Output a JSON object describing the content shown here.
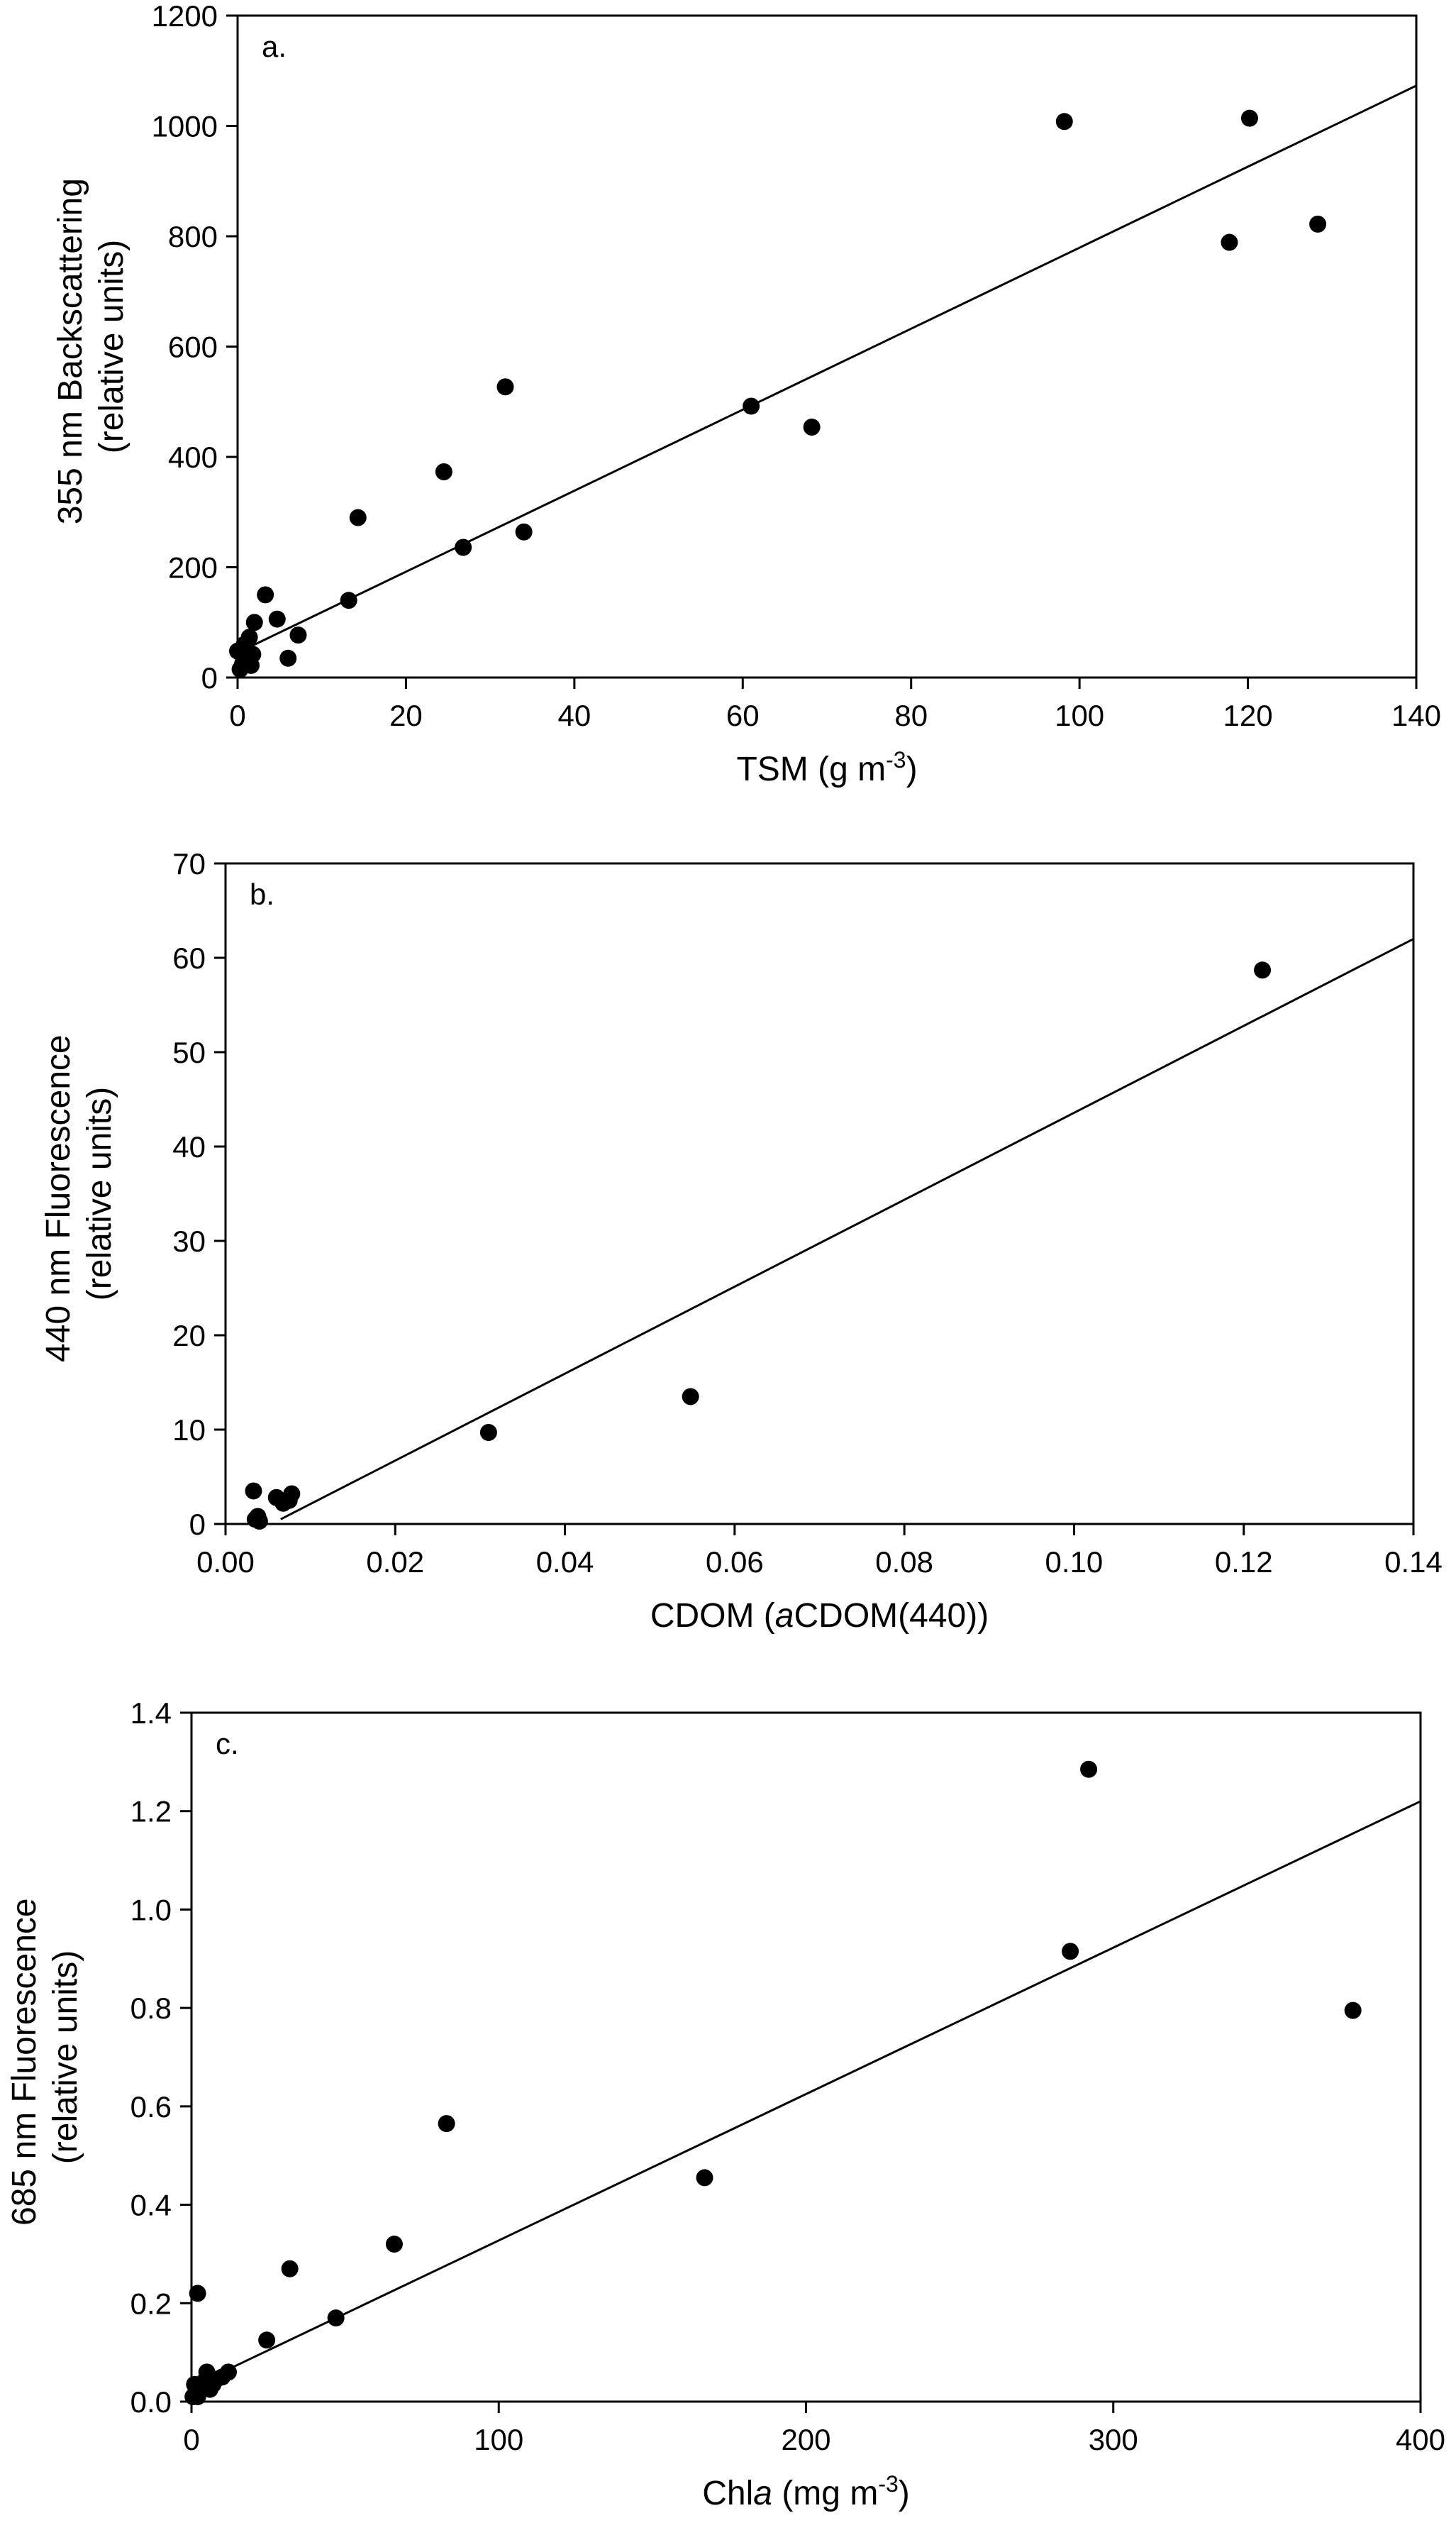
{
  "chart_data": [
    {
      "type": "scatter",
      "panel_label": "a.",
      "ylabel_line1": "355 nm Backscattering",
      "ylabel_line2": "(relative units)",
      "xlabel_main": "TSM (g m",
      "xlabel_sup": "-3",
      "xlabel_end": ")",
      "xlim": [
        0,
        140
      ],
      "ylim": [
        0,
        1200
      ],
      "xticks": [
        0,
        20,
        40,
        60,
        80,
        100,
        120,
        140
      ],
      "yticks": [
        0,
        200,
        400,
        600,
        800,
        1000,
        1200
      ],
      "x": [
        0,
        0.3,
        0.5,
        0.6,
        0.8,
        1,
        1.2,
        1.4,
        1.6,
        1.8,
        2,
        3.3,
        4.7,
        6,
        7.2,
        13.2,
        14.3,
        24.5,
        26.8,
        31.8,
        34,
        61,
        68.2,
        98.2,
        117.8,
        120.2,
        128.3
      ],
      "y": [
        48,
        15,
        42,
        25,
        60,
        35,
        30,
        73,
        22,
        42,
        100,
        150,
        106,
        35,
        77,
        140,
        290,
        373,
        236,
        527,
        264,
        492,
        454,
        1008,
        789,
        1014,
        822
      ],
      "fit": {
        "x": [
          0,
          140
        ],
        "y": [
          45,
          1073
        ]
      }
    },
    {
      "type": "scatter",
      "panel_label": "b.",
      "ylabel_line1": "440 nm Fluorescence",
      "ylabel_line2": "(relative units)",
      "xlabel_pre": "CDOM (",
      "xlabel_italic": "a",
      "xlabel_post": "CDOM(440))",
      "xlim": [
        0,
        0.14
      ],
      "ylim": [
        0,
        70
      ],
      "xticks": [
        0.0,
        0.02,
        0.04,
        0.06,
        0.08,
        0.1,
        0.12,
        0.14
      ],
      "yticks": [
        0,
        10,
        20,
        30,
        40,
        50,
        60,
        70
      ],
      "xtick_labels": [
        "0.00",
        "0.02",
        "0.04",
        "0.06",
        "0.08",
        "0.10",
        "0.12",
        "0.14"
      ],
      "x": [
        0.0033,
        0.0035,
        0.0038,
        0.004,
        0.006,
        0.0068,
        0.0075,
        0.0078,
        0.031,
        0.0548,
        0.1222
      ],
      "y": [
        3.5,
        0.5,
        0.8,
        0.3,
        2.8,
        2.2,
        2.5,
        3.2,
        9.7,
        13.5,
        58.7
      ],
      "fit": {
        "x": [
          0.0065,
          0.14
        ],
        "y": [
          0.5,
          62
        ]
      }
    },
    {
      "type": "scatter",
      "panel_label": "c.",
      "ylabel_line1": "685 nm Fluorescence",
      "ylabel_line2": "(relative units)",
      "xlabel_pre": "Chl",
      "xlabel_italic": "a",
      "xlabel_mid": " (mg m",
      "xlabel_sup": "-3",
      "xlabel_end": ")",
      "xlim": [
        0,
        400
      ],
      "ylim": [
        0,
        1.4
      ],
      "xticks": [
        0,
        100,
        200,
        300,
        400
      ],
      "yticks": [
        0,
        0.2,
        0.4,
        0.6,
        0.8,
        1.0,
        1.2,
        1.4
      ],
      "ytick_labels": [
        "0.0",
        "0.2",
        "0.4",
        "0.6",
        "0.8",
        "1.0",
        "1.2",
        "1.4"
      ],
      "x": [
        0.5,
        1,
        1.5,
        2,
        3,
        4,
        5,
        6,
        7,
        8,
        10,
        12,
        2,
        24.5,
        32,
        47,
        66,
        83,
        167,
        286,
        292,
        378
      ],
      "y": [
        0.01,
        0.035,
        0.02,
        0.01,
        0.03,
        0.04,
        0.06,
        0.025,
        0.035,
        0.045,
        0.05,
        0.06,
        0.22,
        0.125,
        0.27,
        0.17,
        0.32,
        0.565,
        0.455,
        0.915,
        1.285,
        0.795
      ],
      "fit": {
        "x": [
          0,
          400
        ],
        "y": [
          0.03,
          1.22
        ]
      }
    }
  ]
}
